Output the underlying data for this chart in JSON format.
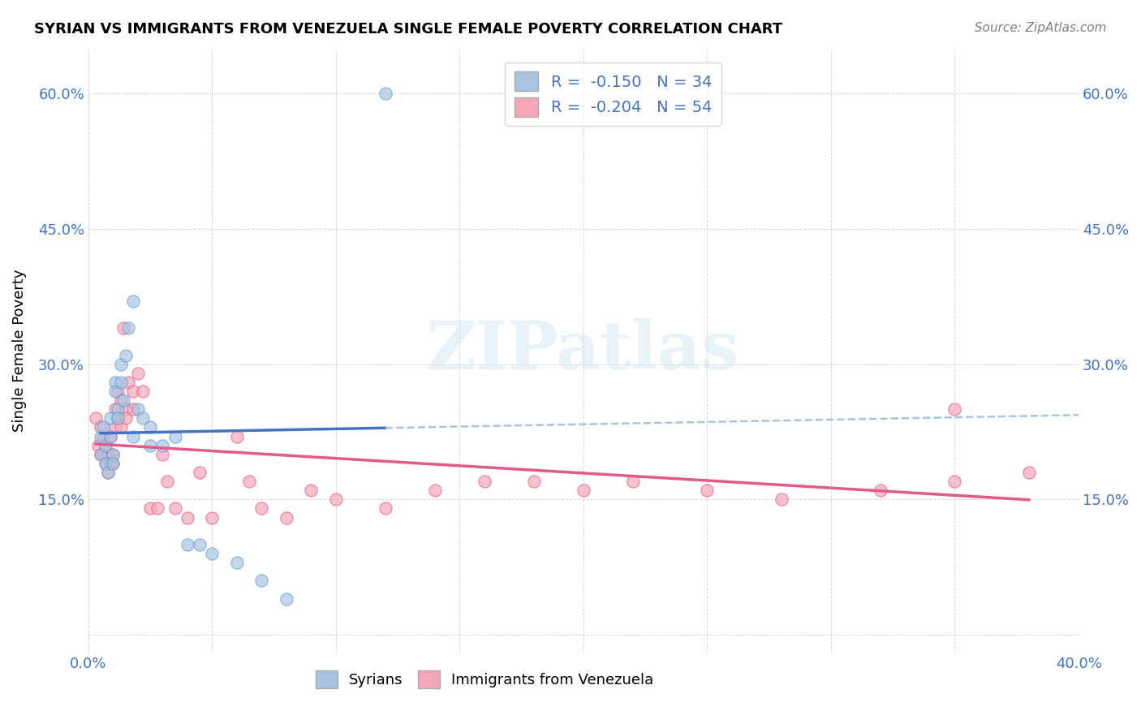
{
  "title": "SYRIAN VS IMMIGRANTS FROM VENEZUELA SINGLE FEMALE POVERTY CORRELATION CHART",
  "source": "Source: ZipAtlas.com",
  "xlabel_label": "",
  "ylabel_label": "Single Female Poverty",
  "legend_label1": "Syrians",
  "legend_label2": "Immigrants from Venezuela",
  "r1": -0.15,
  "n1": 34,
  "r2": -0.204,
  "n2": 54,
  "color_syrian": "#a8c4e0",
  "color_venezuela": "#f4a7b9",
  "color_syrian_dark": "#5b9bd5",
  "color_venezuela_dark": "#e8567a",
  "color_trend1": "#4472c4",
  "color_trend2": "#e05a8a",
  "color_trend1_dash": "#a8c4e0",
  "xlim": [
    0.0,
    0.4
  ],
  "ylim": [
    -0.02,
    0.65
  ],
  "xticks": [
    0.0,
    0.05,
    0.1,
    0.15,
    0.2,
    0.25,
    0.3,
    0.35,
    0.4
  ],
  "yticks": [
    0.0,
    0.15,
    0.3,
    0.45,
    0.6
  ],
  "xtick_labels": [
    "0.0%",
    "",
    "",
    "",
    "",
    "",
    "",
    "",
    "40.0%"
  ],
  "ytick_labels": [
    "",
    "15.0%",
    "30.0%",
    "45.0%",
    "60.0%"
  ],
  "watermark": "ZIPatlas",
  "syrian_x": [
    0.005,
    0.005,
    0.006,
    0.007,
    0.007,
    0.008,
    0.009,
    0.009,
    0.01,
    0.01,
    0.011,
    0.011,
    0.012,
    0.012,
    0.013,
    0.013,
    0.014,
    0.015,
    0.016,
    0.018,
    0.018,
    0.02,
    0.022,
    0.025,
    0.025,
    0.03,
    0.035,
    0.04,
    0.045,
    0.05,
    0.06,
    0.07,
    0.08,
    0.12
  ],
  "syrian_y": [
    0.22,
    0.2,
    0.23,
    0.19,
    0.21,
    0.18,
    0.24,
    0.22,
    0.2,
    0.19,
    0.28,
    0.27,
    0.25,
    0.24,
    0.3,
    0.28,
    0.26,
    0.31,
    0.34,
    0.37,
    0.22,
    0.25,
    0.24,
    0.23,
    0.21,
    0.21,
    0.22,
    0.1,
    0.1,
    0.09,
    0.08,
    0.06,
    0.04,
    0.6
  ],
  "venezuela_x": [
    0.003,
    0.004,
    0.005,
    0.005,
    0.006,
    0.006,
    0.007,
    0.007,
    0.008,
    0.008,
    0.009,
    0.009,
    0.01,
    0.01,
    0.011,
    0.011,
    0.012,
    0.012,
    0.013,
    0.013,
    0.014,
    0.015,
    0.015,
    0.016,
    0.018,
    0.018,
    0.02,
    0.022,
    0.025,
    0.028,
    0.03,
    0.032,
    0.035,
    0.04,
    0.045,
    0.05,
    0.06,
    0.065,
    0.07,
    0.08,
    0.09,
    0.1,
    0.12,
    0.14,
    0.16,
    0.18,
    0.2,
    0.22,
    0.25,
    0.28,
    0.32,
    0.35,
    0.38,
    0.35
  ],
  "venezuela_y": [
    0.24,
    0.21,
    0.23,
    0.2,
    0.22,
    0.2,
    0.21,
    0.19,
    0.2,
    0.18,
    0.22,
    0.19,
    0.2,
    0.19,
    0.25,
    0.23,
    0.27,
    0.24,
    0.26,
    0.23,
    0.34,
    0.25,
    0.24,
    0.28,
    0.27,
    0.25,
    0.29,
    0.27,
    0.14,
    0.14,
    0.2,
    0.17,
    0.14,
    0.13,
    0.18,
    0.13,
    0.22,
    0.17,
    0.14,
    0.13,
    0.16,
    0.15,
    0.14,
    0.16,
    0.17,
    0.17,
    0.16,
    0.17,
    0.16,
    0.15,
    0.16,
    0.17,
    0.18,
    0.25
  ]
}
